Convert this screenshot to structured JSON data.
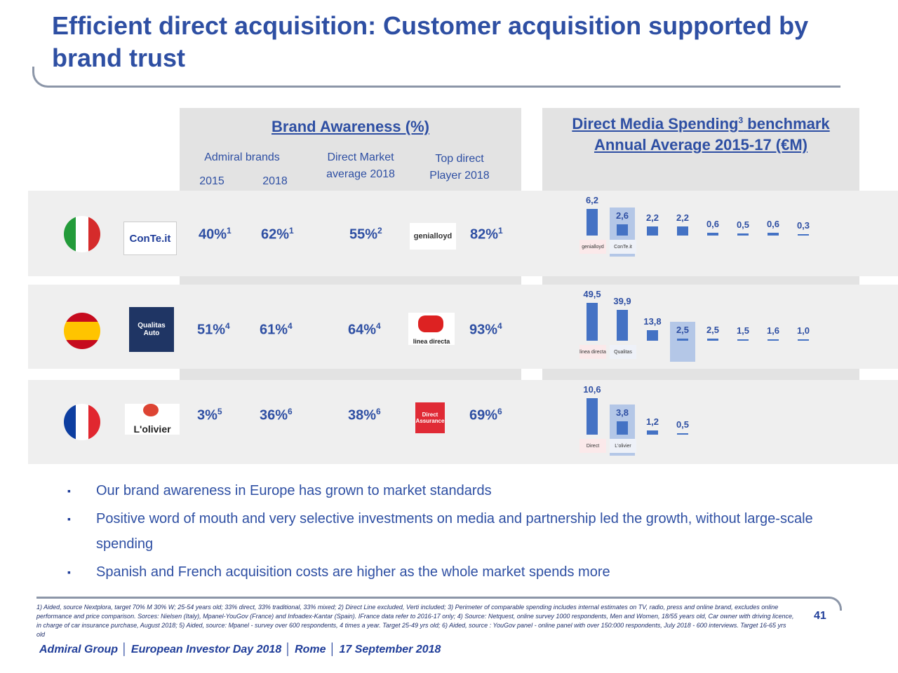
{
  "title": "Efficient direct acquisition: Customer acquisition supported by brand trust",
  "awareness": {
    "header": "Brand Awareness (%)",
    "col_admiral": "Admiral brands",
    "col_2015": "2015",
    "col_2018": "2018",
    "col_market_l1": "Direct Market",
    "col_market_l2": "average 2018",
    "col_top_l1": "Top direct",
    "col_top_l2": "Player 2018"
  },
  "spending": {
    "header_l1a": "Direct Media Spending",
    "header_sup": "3",
    "header_l1b": " benchmark",
    "header_l2": "Annual Average 2015-17 (€M)"
  },
  "rows": [
    {
      "country": "Italy",
      "brand_logo": "ConTe.it",
      "top_logo": "genialloyd",
      "a2015": "40%",
      "a2015_sup": "1",
      "a2018": "62%",
      "a2018_sup": "1",
      "market": "55%",
      "market_sup": "2",
      "top": "82%",
      "top_sup": "1",
      "spend_labels": [
        "6,2",
        "2,6",
        "2,2",
        "2,2",
        "0,6",
        "0,5",
        "0,6",
        "0,3"
      ],
      "spend_values": [
        6.2,
        2.6,
        2.2,
        2.2,
        0.6,
        0.5,
        0.6,
        0.3
      ],
      "highlight_index": 1,
      "mini_logos": [
        "genialloyd",
        "ConTe.it"
      ]
    },
    {
      "country": "Spain",
      "brand_logo": "Qualitas Auto",
      "top_logo": "linea directa",
      "a2015": "51%",
      "a2015_sup": "4",
      "a2018": "61%",
      "a2018_sup": "4",
      "market": "64%",
      "market_sup": "4",
      "top": "93%",
      "top_sup": "4",
      "spend_labels": [
        "49,5",
        "39,9",
        "13,8",
        "2,5",
        "2,5",
        "1,5",
        "1,6",
        "1,0"
      ],
      "spend_values": [
        49.5,
        39.9,
        13.8,
        2.5,
        2.5,
        1.5,
        1.6,
        1.0
      ],
      "highlight_index": 3,
      "mini_logos": [
        "linea directa",
        "Qualitas"
      ]
    },
    {
      "country": "France",
      "brand_logo": "L'olivier",
      "top_logo": "Direct Assurance",
      "a2015": "3%",
      "a2015_sup": "5",
      "a2018": "36%",
      "a2018_sup": "6",
      "market": "38%",
      "market_sup": "6",
      "top": "69%",
      "top_sup": "6",
      "spend_labels": [
        "10,6",
        "3,8",
        "1,2",
        "0,5"
      ],
      "spend_values": [
        10.6,
        3.8,
        1.2,
        0.5
      ],
      "highlight_index": 1,
      "mini_logos": [
        "Direct",
        "L'olivier"
      ]
    }
  ],
  "bullets": [
    "Our brand awareness in Europe has grown to market standards",
    "Positive word of mouth and very selective investments on media and partnership led the growth, without large-scale spending",
    "Spanish and French acquisition costs are higher as the whole market spends more"
  ],
  "footnote": "1) Aided, source Nextplora, target 70% M 30% W; 25-54 years old; 33% direct, 33% traditional, 33% mixed; 2) Direct Line excluded, Verti included; 3) Perimeter of comparable spending includes internal estimates on TV, radio, press and online brand, excludes online performance and price comparison. Sorces: Nielsen (Italy), Mpanel-YouGov (France) and Infoadex-Kantar (Spain). IFrance data refer to 2016-17 only; 4) Source: Netquest, online survey 1000 respondents, Men and Women, 18/55 years old, Car owner with driving licence, in charge of car insurance purchase, August 2018; 5) Aided, source: Mpanel - survey over 600 respondents, 4 times a year. Target 25-49 yrs old; 6) Aided, source : YouGov panel - online panel with over 150:000 respondents, July 2018 - 600 interviews. Target 16-65 yrs old",
  "page_number": "41",
  "footer": "Admiral Group  │  European Investor Day 2018  │  Rome  │  17 September 2018",
  "colors": {
    "accent": "#2e4fa3",
    "bar": "#4472c4",
    "highlight": "#b4c7e7"
  }
}
